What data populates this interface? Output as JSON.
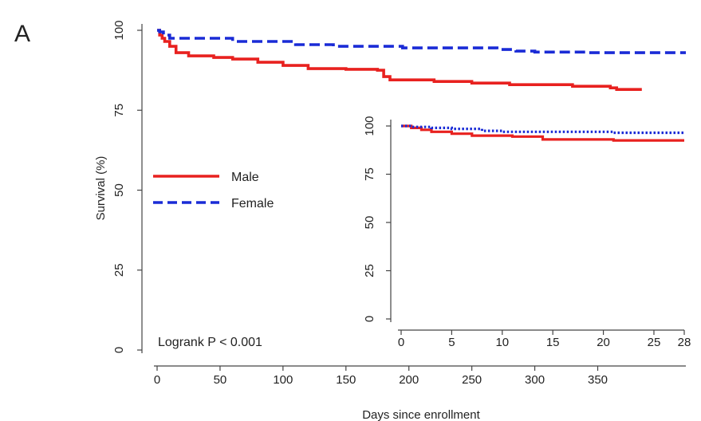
{
  "panel_label": "A",
  "colors": {
    "male": "#e8211f",
    "female": "#1a2bd6",
    "axis": "#444444"
  },
  "chart_data": [
    {
      "type": "line",
      "title": "",
      "xlabel": "Days since enrollment",
      "ylabel": "Survival (%)",
      "xlim": [
        0,
        420
      ],
      "ylim": [
        0,
        100
      ],
      "xticks": [
        0,
        50,
        100,
        150,
        200,
        250,
        300,
        350
      ],
      "xtick_labels": [
        "0",
        "50",
        "100",
        "150",
        "200",
        "250",
        "300",
        "350"
      ],
      "yticks": [
        0,
        25,
        50,
        75,
        100
      ],
      "ytick_labels": [
        "0",
        "25",
        "50",
        "75",
        "100"
      ],
      "legend_position": "middle-left",
      "annotation": "Logrank P < 0.001",
      "series": [
        {
          "name": "Male",
          "style": "solid",
          "color": "#e8211f",
          "x": [
            0,
            2,
            4,
            6,
            10,
            15,
            25,
            45,
            60,
            80,
            100,
            120,
            150,
            175,
            180,
            185,
            220,
            250,
            280,
            330,
            360,
            365,
            385
          ],
          "y": [
            100,
            98.5,
            97.5,
            96.5,
            95,
            93,
            92,
            91.5,
            91,
            90,
            89,
            88,
            87.8,
            87.5,
            85.5,
            84.5,
            84,
            83.5,
            83,
            82.5,
            82,
            81.5,
            81.5
          ]
        },
        {
          "name": "Female",
          "style": "dashed",
          "color": "#1a2bd6",
          "x": [
            0,
            2,
            5,
            10,
            60,
            110,
            140,
            195,
            270,
            285,
            300,
            340,
            420
          ],
          "y": [
            100,
            99.5,
            98.5,
            97.5,
            96.5,
            95.5,
            95,
            94.5,
            94,
            93.5,
            93.2,
            93,
            93
          ]
        }
      ]
    },
    {
      "type": "line",
      "title": "",
      "xlabel": "",
      "ylabel": "",
      "xlim": [
        0,
        28
      ],
      "ylim": [
        0,
        100
      ],
      "xticks": [
        0,
        5,
        10,
        15,
        20,
        25,
        28
      ],
      "xtick_labels": [
        "0",
        "5",
        "10",
        "15",
        "20",
        "25",
        "28"
      ],
      "yticks": [
        0,
        25,
        50,
        75,
        100
      ],
      "ytick_labels": [
        "0",
        "25",
        "50",
        "75",
        "100"
      ],
      "series": [
        {
          "color": "#e8211f",
          "style": "solid",
          "x": [
            0,
            1,
            2,
            3,
            5,
            7,
            9,
            11,
            14,
            18,
            21,
            28
          ],
          "y": [
            100,
            99,
            98,
            97,
            96,
            95,
            95,
            94.5,
            93,
            93,
            92.5,
            92.5
          ]
        },
        {
          "color": "#1a2bd6",
          "style": "dotted",
          "x": [
            0,
            1,
            3,
            5,
            8,
            10,
            14,
            21,
            28
          ],
          "y": [
            100,
            99.5,
            99,
            98.5,
            97.5,
            97,
            97,
            96.5,
            96.5
          ]
        }
      ]
    }
  ]
}
